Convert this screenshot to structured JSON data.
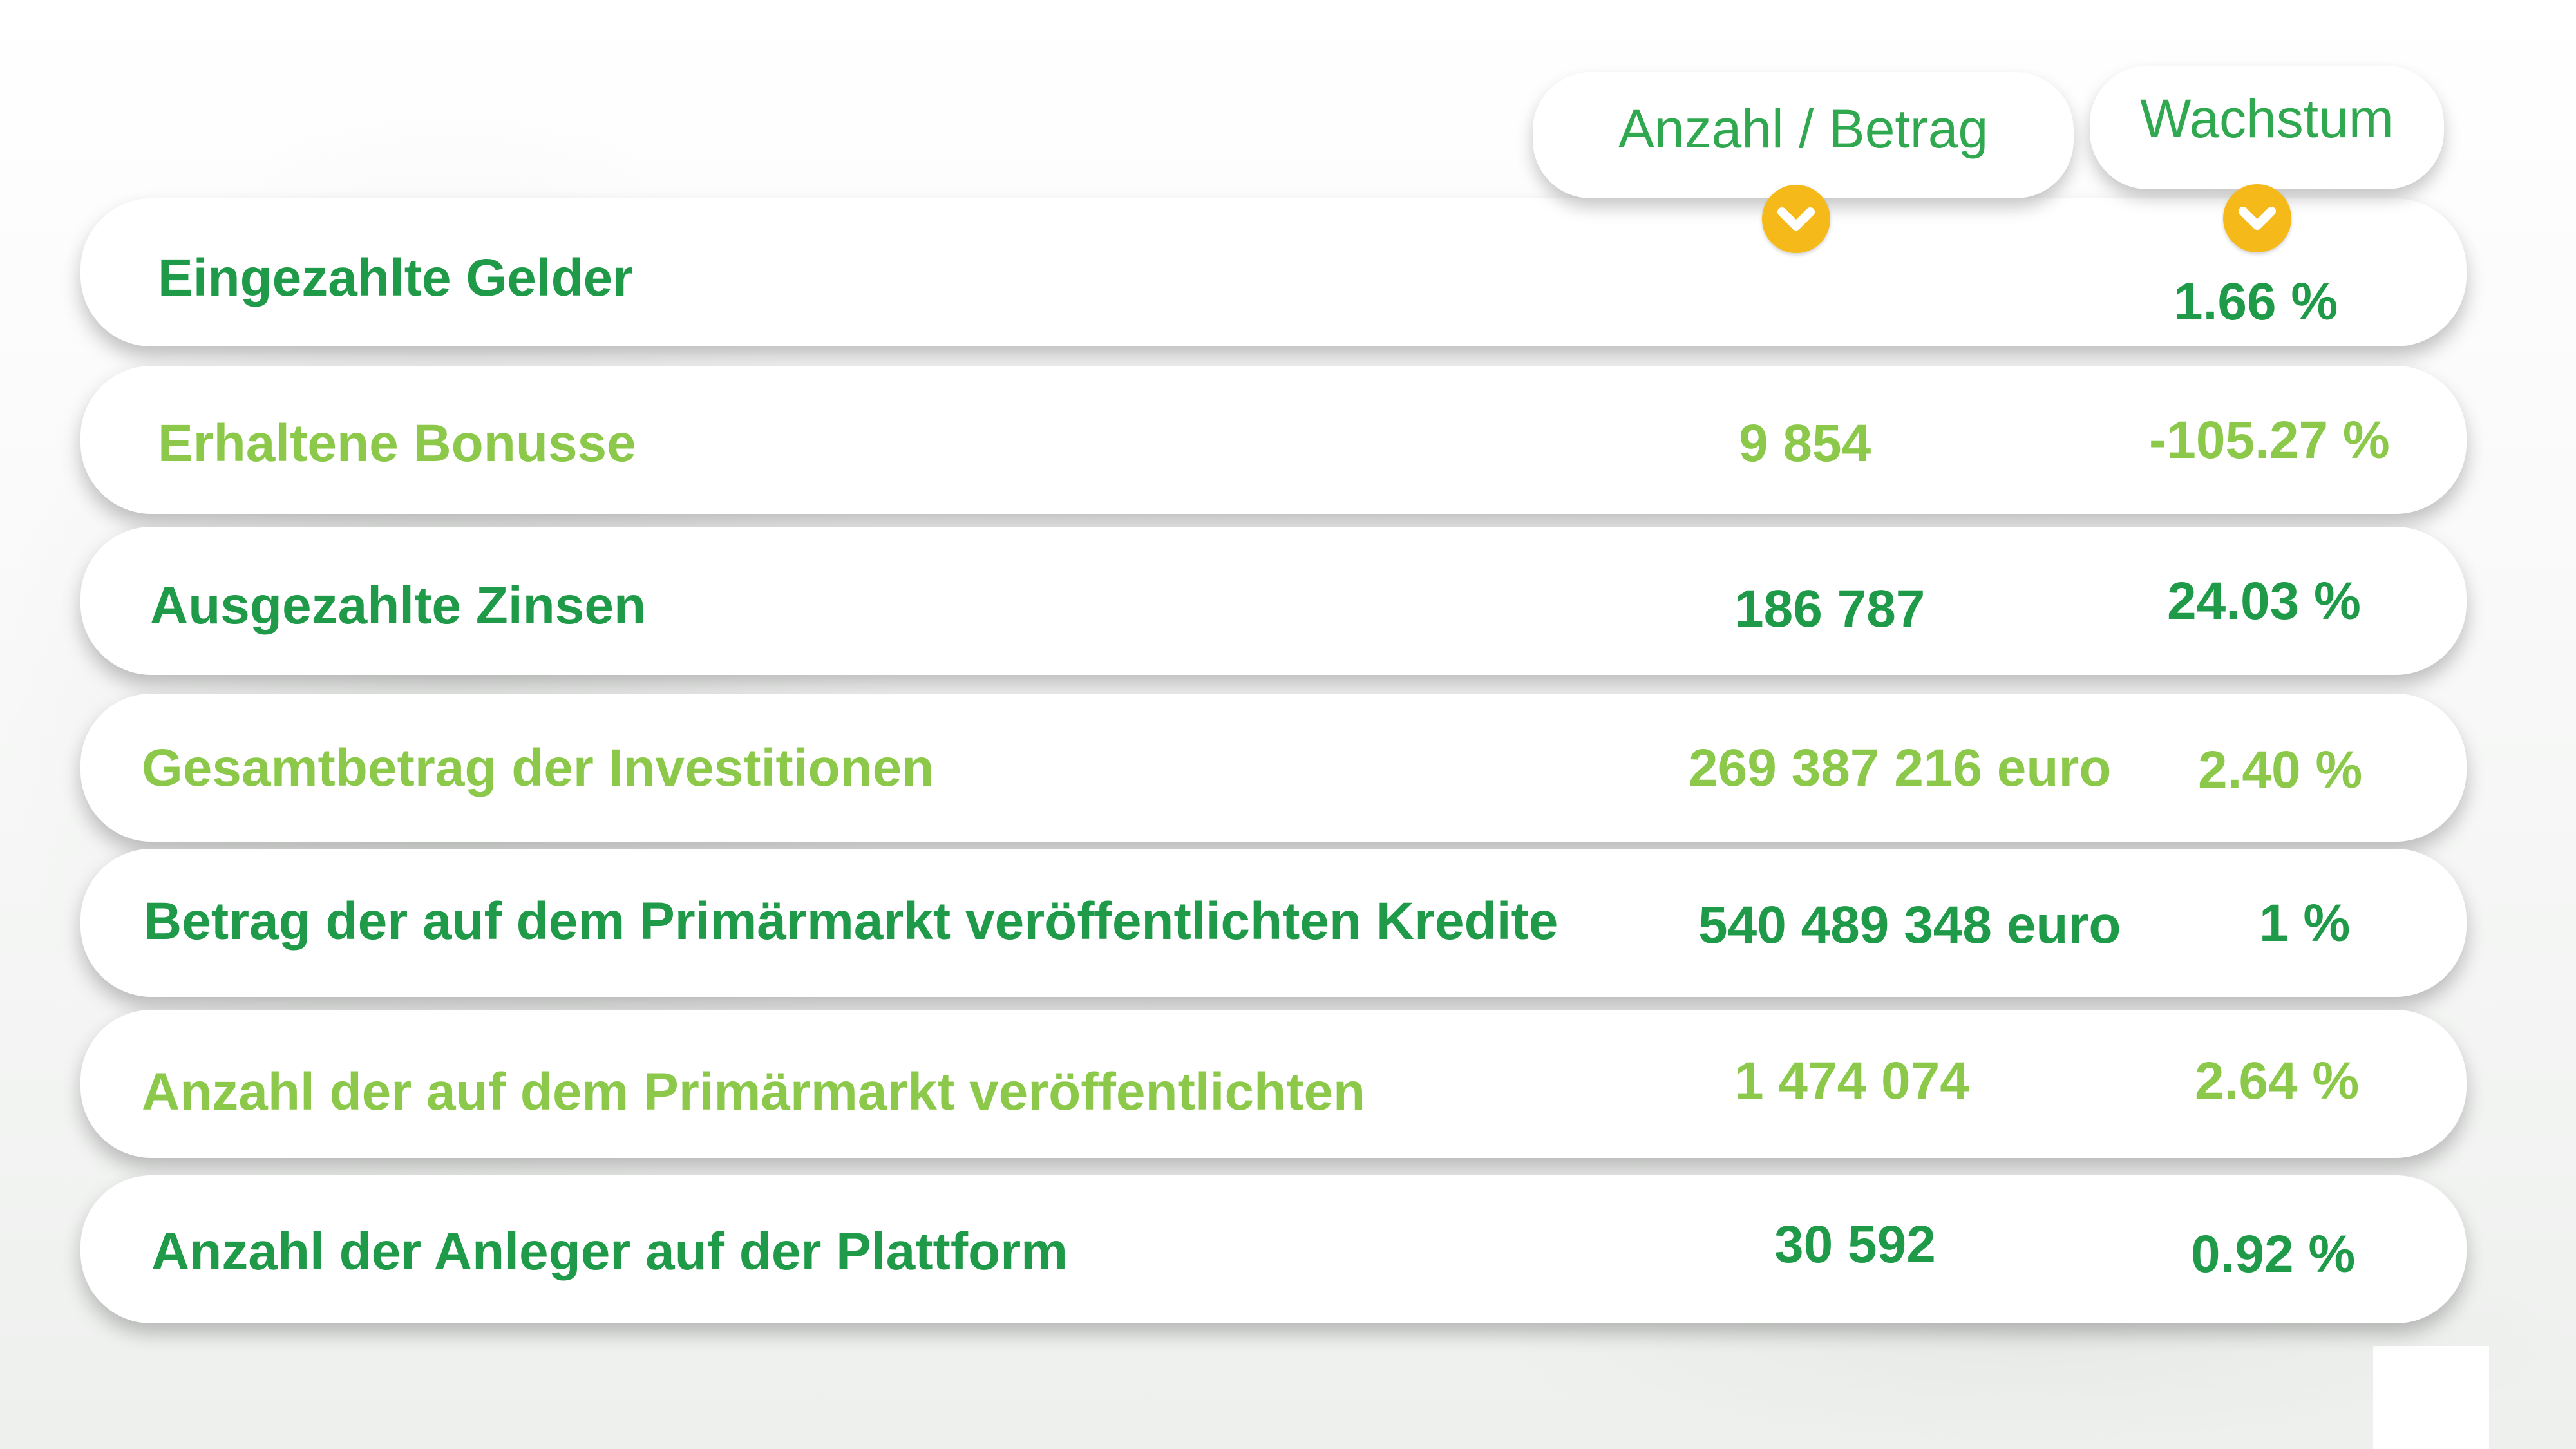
{
  "header": {
    "amount_label": "Anzahl / Betrag",
    "growth_label": "Wachstum",
    "dropdown_icon": "chevron-down-icon"
  },
  "colors": {
    "dark_green": "#1e9a48",
    "light_green": "#8cc94a",
    "header_green": "#2fa84f",
    "chevron_yellow": "#f6b91a"
  },
  "rows": [
    {
      "label": "Eingezahlte Gelder",
      "amount": "",
      "growth": "1.66 %"
    },
    {
      "label": "Erhaltene Bonusse",
      "amount": "9 854",
      "growth": "-105.27 %"
    },
    {
      "label": "Ausgezahlte Zinsen",
      "amount": "186 787",
      "growth": "24.03 %"
    },
    {
      "label": "Gesamtbetrag der Investitionen",
      "amount": "269 387 216 euro",
      "growth": "2.40 %"
    },
    {
      "label": "Betrag der auf dem Primärmarkt veröffentlichten Kredite",
      "amount": "540 489 348 euro",
      "growth": "1 %"
    },
    {
      "label": "Anzahl der auf dem Primärmarkt veröffentlichten",
      "amount": "1 474 074",
      "growth": "2.64 %"
    },
    {
      "label": "Anzahl der Anleger auf der Plattform",
      "amount": "30 592",
      "growth": "0.92 %"
    }
  ]
}
